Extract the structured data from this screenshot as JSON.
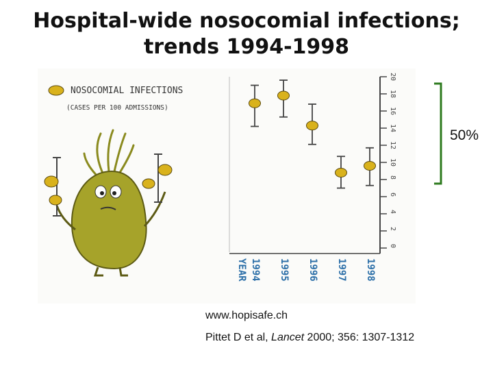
{
  "title": {
    "line1": "Hospital-wide nosocomial infections;",
    "line2": "trends 1994-1998"
  },
  "bracket": {
    "label": "50%",
    "color": "#2d7a1e"
  },
  "footer": {
    "url": "www.hopisafe.ch",
    "citation_authors": "Pittet D et al, ",
    "citation_journal": "Lancet",
    "citation_rest": " 2000; 356: 1307-1312"
  },
  "cartoon": {
    "legend_line1": "NOSOCOMIAL INFECTIONS",
    "legend_line2": "(CASES PER 100 ADMISSIONS)",
    "x_axis_title": "YEAR"
  },
  "colors": {
    "marker": "#d9b21c",
    "creature": "#a6a32a",
    "axis": "#444444"
  },
  "chart_data": {
    "type": "scatter",
    "title": "Hospital-wide nosocomial infections; trends 1994-1998",
    "ylabel": "NOSOCOMIAL INFECTIONS (CASES PER 100 ADMISSIONS)",
    "xlabel": "YEAR",
    "ylim": [
      0,
      20
    ],
    "y_ticks": [
      0,
      2,
      4,
      6,
      8,
      10,
      12,
      14,
      16,
      18,
      20
    ],
    "y_tick_labels": [
      "0",
      "2",
      "4",
      "6",
      "8",
      "10",
      "12",
      "14",
      "16",
      "18",
      "20"
    ],
    "categories": [
      "1994",
      "1995",
      "1996",
      "1997",
      "1998"
    ],
    "values": [
      16.9,
      17.8,
      14.3,
      8.8,
      9.6
    ],
    "error_low": [
      14.2,
      15.3,
      12.1,
      7.0,
      7.3
    ],
    "error_high": [
      19.0,
      19.6,
      16.8,
      10.7,
      11.7
    ]
  }
}
